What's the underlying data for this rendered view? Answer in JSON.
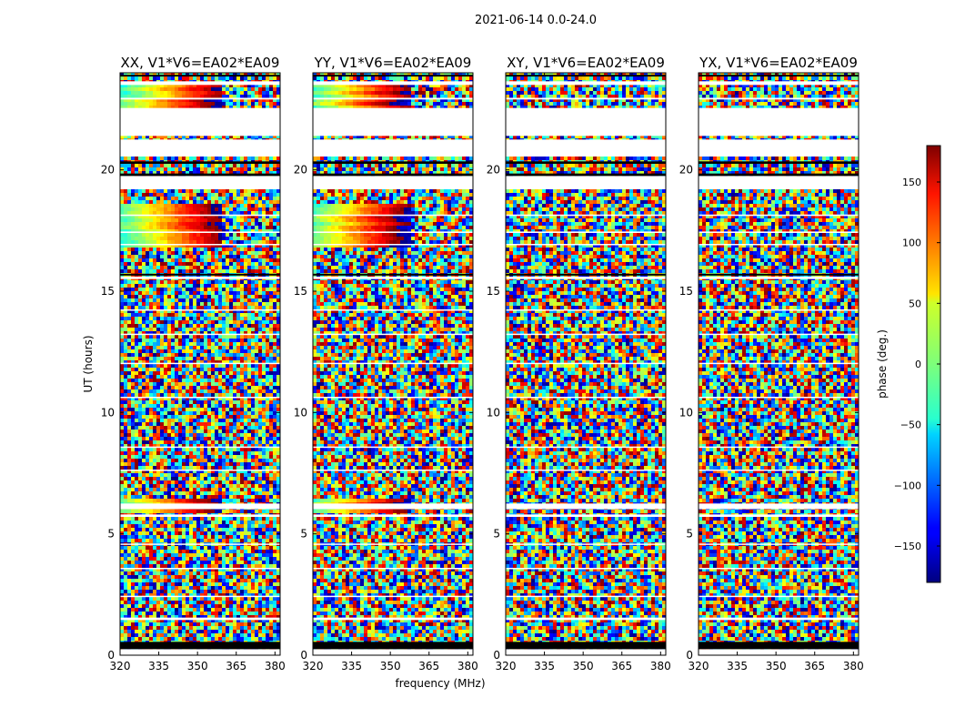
{
  "figure": {
    "suptitle": "2021-06-14 0.0-24.0"
  },
  "chart_data": {
    "type": "heatmap",
    "xlabel": "frequency (MHz)",
    "ylabel": "UT (hours)",
    "xlim": [
      320,
      382
    ],
    "ylim": [
      0,
      24
    ],
    "x_ticks": [
      320,
      335,
      350,
      365,
      380
    ],
    "y_ticks": [
      0,
      5,
      10,
      15,
      20
    ],
    "colorbar": {
      "label": "phase (deg.)",
      "range": [
        -180,
        180
      ],
      "ticks": [
        150,
        100,
        50,
        0,
        -50,
        -100,
        -150
      ],
      "colormap": "jet"
    },
    "panels": [
      {
        "title": "XX, V1*V6=EA02*EA09",
        "coherent_band_mhz": [
          320,
          360
        ]
      },
      {
        "title": "YY, V1*V6=EA02*EA09",
        "coherent_band_mhz": [
          320,
          358
        ]
      },
      {
        "title": "XY, V1*V6=EA02*EA09",
        "coherent_band_mhz": []
      },
      {
        "title": "YX, V1*V6=EA02*EA09",
        "coherent_band_mhz": []
      }
    ],
    "blank_ut_intervals_hours": [
      [
        21.4,
        22.55
      ],
      [
        20.55,
        21.25
      ],
      [
        19.2,
        19.75
      ],
      [
        15.5,
        15.6
      ],
      [
        6.02,
        6.25
      ],
      [
        5.7,
        5.8
      ],
      [
        1.45,
        1.55
      ],
      [
        0.0,
        0.25
      ],
      [
        23.5,
        23.65
      ],
      [
        22.9,
        22.97
      ],
      [
        18.1,
        18.16
      ],
      [
        17.4,
        17.46
      ],
      [
        16.9,
        16.95
      ],
      [
        14.2,
        14.25
      ],
      [
        13.2,
        13.25
      ],
      [
        12.0,
        12.05
      ],
      [
        10.6,
        10.65
      ],
      [
        8.55,
        8.6
      ],
      [
        7.6,
        7.65
      ],
      [
        4.55,
        4.6
      ],
      [
        3.55,
        3.6
      ],
      [
        2.4,
        2.45
      ]
    ],
    "flagged_ut_intervals_hours": [
      [
        0.25,
        0.55
      ],
      [
        19.75,
        19.85
      ],
      [
        20.25,
        20.35
      ],
      [
        15.65,
        15.72
      ],
      [
        23.85,
        23.92
      ]
    ]
  }
}
